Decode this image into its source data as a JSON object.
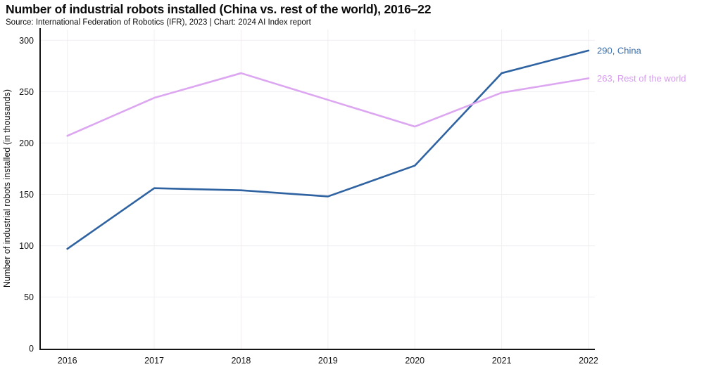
{
  "header": {
    "title": "Number of industrial robots installed (China vs. rest of the world), 2016–22",
    "subtitle": "Source: International Federation of Robotics (IFR), 2023 | Chart: 2024 AI Index report"
  },
  "chart_data": {
    "type": "line",
    "title": "Number of industrial robots installed (China vs. rest of the world), 2016–22",
    "x": [
      2016,
      2017,
      2018,
      2019,
      2020,
      2021,
      2022
    ],
    "series": [
      {
        "name": "China",
        "values": [
          97,
          156,
          154,
          148,
          178,
          268,
          290
        ],
        "color": "#2e62a1",
        "label_color": "#3a6fae",
        "end_label": "290, China"
      },
      {
        "name": "Rest of the world",
        "values": [
          207,
          244,
          268,
          242,
          216,
          249,
          263
        ],
        "color": "#dca6f1",
        "label_color": "#d79cf0",
        "end_label": "263, Rest of the world"
      }
    ],
    "xlabel": "",
    "ylabel": "Number of industrial robots installed (in thousands)",
    "yticks": [
      0,
      50,
      100,
      150,
      200,
      250,
      300
    ],
    "ylim": [
      0,
      300
    ],
    "grid": true,
    "grid_color": "#f1eef2",
    "axis_color": "#141414",
    "tick_label_color": "#111111",
    "legend_position": "end-of-line-labels"
  }
}
